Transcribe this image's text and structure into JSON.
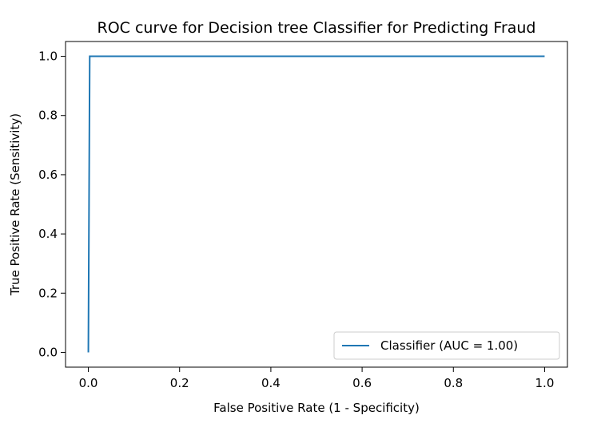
{
  "chart_data": {
    "type": "line",
    "title": "ROC curve for Decision tree Classifier for Predicting Fraud",
    "xlabel": "False Positive Rate (1 - Specificity)",
    "ylabel": "True Positive Rate (Sensitivity)",
    "xlim": [
      -0.05,
      1.05
    ],
    "ylim": [
      -0.05,
      1.05
    ],
    "xticks": [
      0.0,
      0.2,
      0.4,
      0.6,
      0.8,
      1.0
    ],
    "yticks": [
      0.0,
      0.2,
      0.4,
      0.6,
      0.8,
      1.0
    ],
    "xtick_labels": [
      "0.0",
      "0.2",
      "0.4",
      "0.6",
      "0.8",
      "1.0"
    ],
    "ytick_labels": [
      "0.0",
      "0.2",
      "0.4",
      "0.6",
      "0.8",
      "1.0"
    ],
    "grid": false,
    "legend_position": "lower-right",
    "series": [
      {
        "name": "Classifier (AUC = 1.00)",
        "color": "#1f77b4",
        "x": [
          0.0,
          0.003,
          1.0
        ],
        "y": [
          0.0,
          1.0,
          1.0
        ]
      }
    ]
  }
}
